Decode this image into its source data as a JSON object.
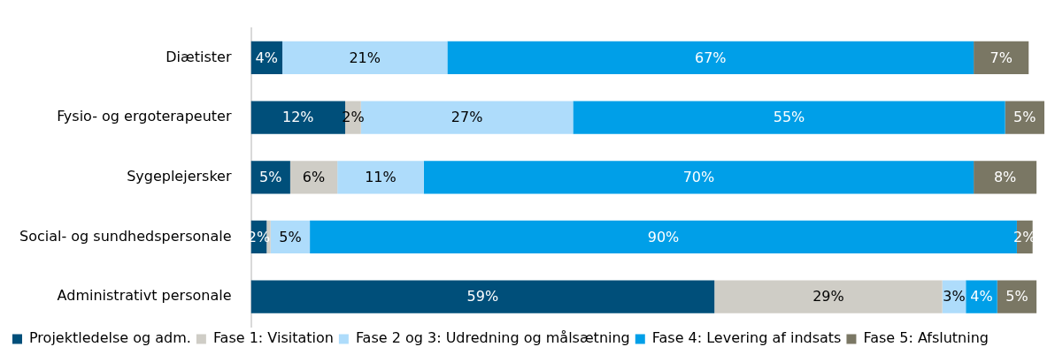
{
  "chart_data": {
    "type": "bar",
    "orientation": "horizontal",
    "stacked": true,
    "categories": [
      "Diætister",
      "Fysio- og ergoterapeuter",
      "Sygeplejersker",
      "Social- og sundhedspersonale",
      "Administrativt personale"
    ],
    "series": [
      {
        "name": "Projektledelse og adm.",
        "color": "#004f7a",
        "values": [
          4,
          12,
          5,
          2,
          59
        ],
        "value_labels": [
          "4%",
          "12%",
          "5%",
          "2%",
          "59%"
        ]
      },
      {
        "name": "Fase 1: Visitation",
        "color": "#cfcdc6",
        "values": [
          null,
          2,
          6,
          0.5,
          29
        ],
        "value_labels": [
          null,
          "2%",
          "6%",
          null,
          "29%"
        ]
      },
      {
        "name": "Fase 2 og 3: Udredning og målsætning",
        "color": "#aedcfb",
        "values": [
          21,
          27,
          11,
          5,
          3
        ],
        "value_labels": [
          "21%",
          "27%",
          "11%",
          "5%",
          "3%"
        ]
      },
      {
        "name": "Fase 4: Levering af indsats",
        "color": "#009fe8",
        "values": [
          67,
          55,
          70,
          90,
          4
        ],
        "value_labels": [
          "67%",
          "55%",
          "70%",
          "90%",
          "4%"
        ]
      },
      {
        "name": "Fase 5: Afslutning",
        "color": "#7a7764",
        "values": [
          7,
          5,
          8,
          2,
          5
        ],
        "value_labels": [
          "7%",
          "5%",
          "8%",
          "2%",
          "5%"
        ]
      }
    ],
    "xlim": [
      0,
      101
    ],
    "tick_labels": "y",
    "legend": "bottom"
  }
}
